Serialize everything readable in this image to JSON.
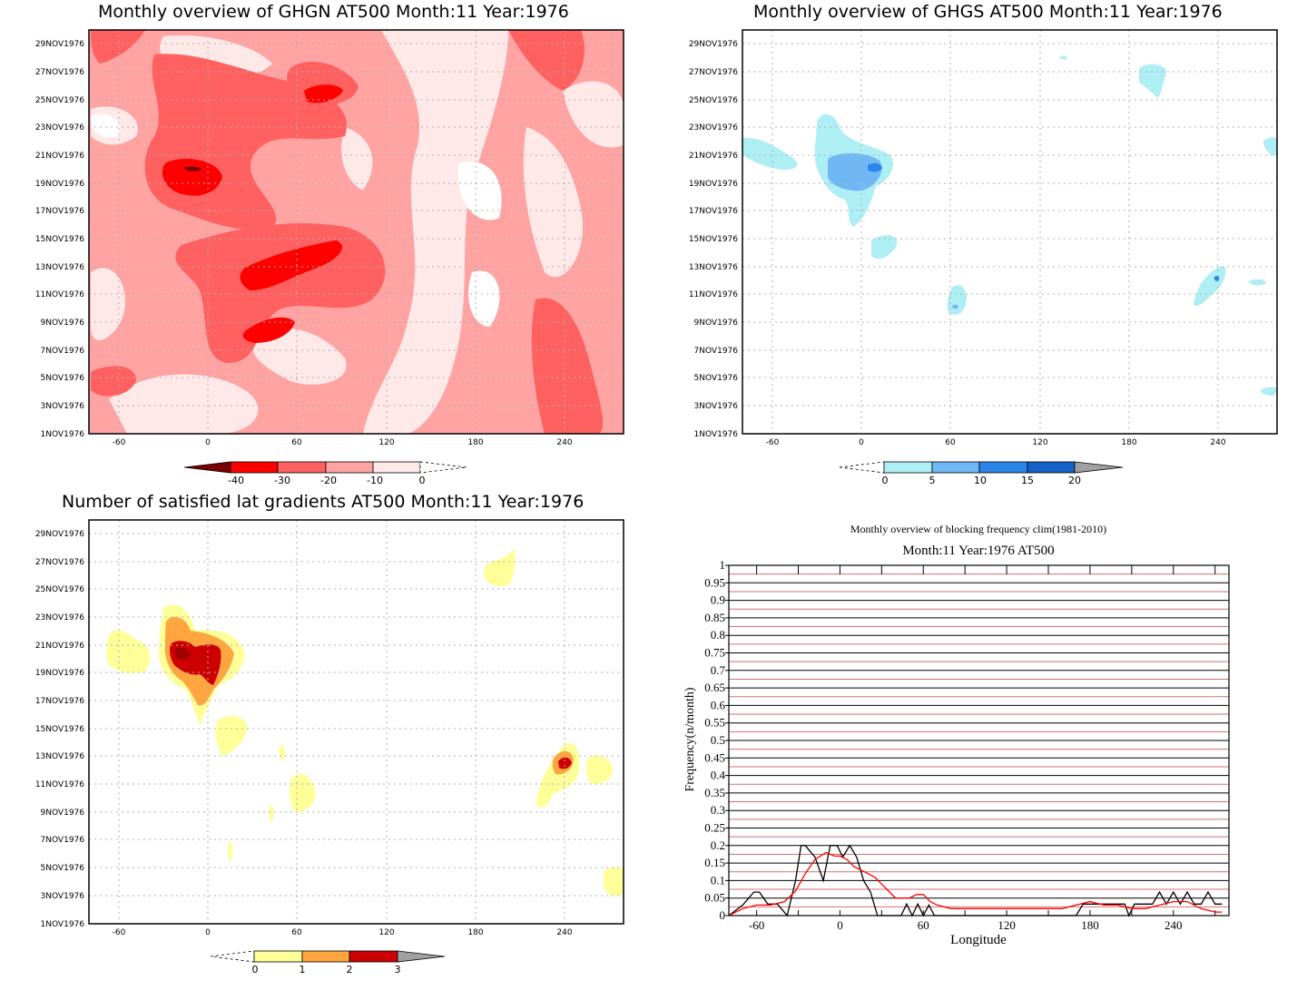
{
  "panels": {
    "ghgn": {
      "title": "Monthly overview of GHGN AT500 Month:11 Year:1976",
      "colorbar": {
        "labels": [
          "-40",
          "-30",
          "-20",
          "-10",
          "0"
        ],
        "colors": [
          "#7a0000",
          "#ff0000",
          "#ff6060",
          "#ffa3a3",
          "#ffe8e8"
        ]
      },
      "colors": {
        "c1": "#ffe8e8",
        "c2": "#ffa3a3",
        "c3": "#ff6060",
        "c4": "#ff0000",
        "c5": "#7a0000"
      }
    },
    "ghgs": {
      "title": "Monthly overview of GHGS AT500 Month:11 Year:1976",
      "colorbar": {
        "labels": [
          "0",
          "5",
          "10",
          "15",
          "20"
        ],
        "colors": [
          "#aeeef5",
          "#6fb8f5",
          "#2b86e8",
          "#1562c9",
          "#a0a0a0"
        ]
      }
    },
    "lat": {
      "title": "Number of satisfied lat gradients AT500 Month:11 Year:1976",
      "colorbar": {
        "labels": [
          "0",
          "1",
          "2",
          "3"
        ],
        "colors": [
          "#ffff99",
          "#ffa640",
          "#cc0000",
          "#a0a0a0"
        ]
      }
    },
    "freq": {
      "title": "Monthly overview of blocking frequency clim(1981-2010)",
      "subtitle": "Month:11 Year:1976  AT500",
      "ylabel": "Frequency(n/month)",
      "xlabel": "Longitude"
    }
  },
  "map_axes": {
    "x_ticks": [
      "-60",
      "0",
      "60",
      "120",
      "180",
      "240"
    ],
    "y_ticks": [
      "1NOV1976",
      "3NOV1976",
      "5NOV1976",
      "7NOV1976",
      "9NOV1976",
      "11NOV1976",
      "13NOV1976",
      "15NOV1976",
      "17NOV1976",
      "19NOV1976",
      "21NOV1976",
      "23NOV1976",
      "25NOV1976",
      "27NOV1976",
      "29NOV1976"
    ]
  },
  "chart_data": [
    {
      "type": "heatmap",
      "title": "Monthly overview of GHGN AT500 Month:11 Year:1976",
      "x_range": [
        -75,
        285
      ],
      "y_range": [
        "1NOV1976",
        "30NOV1976"
      ],
      "levels": [
        -40,
        -30,
        -20,
        -10,
        0
      ]
    },
    {
      "type": "heatmap",
      "title": "Monthly overview of GHGS AT500 Month:11 Year:1976",
      "x_range": [
        -75,
        285
      ],
      "y_range": [
        "1NOV1976",
        "30NOV1976"
      ],
      "levels": [
        0,
        5,
        10,
        15,
        20
      ]
    },
    {
      "type": "heatmap",
      "title": "Number of satisfied lat gradients AT500 Month:11 Year:1976",
      "x_range": [
        -75,
        285
      ],
      "y_range": [
        "1NOV1976",
        "30NOV1976"
      ],
      "levels": [
        0,
        1,
        2,
        3
      ]
    },
    {
      "type": "line",
      "title": "Monthly overview of blocking frequency clim(1981-2010)",
      "subtitle": "Month:11 Year:1976  AT500",
      "xlabel": "Longitude",
      "ylabel": "Frequency(n/month)",
      "xlim": [
        -80,
        280
      ],
      "ylim": [
        0,
        1
      ],
      "x_ticks": [
        -60,
        0,
        60,
        120,
        180,
        240
      ],
      "y_ticks": [
        0,
        0.05,
        0.1,
        0.15,
        0.2,
        0.25,
        0.3,
        0.35,
        0.4,
        0.45,
        0.5,
        0.55,
        0.6,
        0.65,
        0.7,
        0.75,
        0.8,
        0.85,
        0.9,
        0.95,
        1
      ],
      "y_tick_labels": [
        "0",
        "0.05",
        "0.1",
        "0.15",
        "0.2",
        "0.25",
        "0.3",
        "0.35",
        "0.4",
        "0.45",
        "0.5",
        "0.55",
        "0.6",
        "0.65",
        "0.7",
        "0.75",
        "0.8",
        "0.85",
        "0.9",
        "0.95",
        "1"
      ],
      "series": [
        {
          "color": "#000000",
          "x": [
            -80,
            -70,
            -62,
            -58,
            -52,
            -45,
            -38,
            -32,
            -28,
            -25,
            -18,
            -12,
            -7,
            -2,
            2,
            7,
            12,
            17,
            22,
            27,
            32,
            38,
            44,
            48,
            52,
            56,
            60,
            64,
            68,
            74,
            80,
            120,
            170,
            175,
            180,
            185,
            190,
            200,
            205,
            208,
            212,
            220,
            225,
            230,
            235,
            240,
            245,
            250,
            255,
            260,
            265,
            270,
            275
          ],
          "y": [
            0,
            0.03,
            0.067,
            0.067,
            0.033,
            0.033,
            0,
            0.1,
            0.2,
            0.2,
            0.167,
            0.1,
            0.2,
            0.2,
            0.167,
            0.2,
            0.167,
            0.1,
            0.067,
            0,
            0,
            0,
            0,
            0.033,
            0,
            0.033,
            0,
            0.03,
            0,
            0,
            0,
            0,
            0,
            0.033,
            0.033,
            0.033,
            0.033,
            0.033,
            0.033,
            0,
            0.033,
            0.033,
            0.033,
            0.067,
            0.033,
            0.067,
            0.033,
            0.067,
            0.033,
            0.033,
            0.067,
            0.033,
            0.033
          ]
        },
        {
          "color": "#ff0000",
          "x": [
            -80,
            -70,
            -60,
            -50,
            -40,
            -32,
            -25,
            -18,
            -10,
            -4,
            0,
            5,
            10,
            15,
            20,
            25,
            30,
            35,
            40,
            45,
            50,
            55,
            60,
            65,
            70,
            80,
            90,
            100,
            110,
            120,
            130,
            140,
            150,
            160,
            170,
            180,
            190,
            200,
            210,
            220,
            230,
            240,
            250,
            260,
            270,
            275
          ],
          "y": [
            0,
            0.02,
            0.03,
            0.03,
            0.04,
            0.07,
            0.12,
            0.16,
            0.18,
            0.17,
            0.17,
            0.16,
            0.14,
            0.13,
            0.12,
            0.11,
            0.09,
            0.07,
            0.05,
            0.05,
            0.05,
            0.06,
            0.06,
            0.04,
            0.03,
            0.02,
            0.02,
            0.02,
            0.02,
            0.02,
            0.02,
            0.02,
            0.02,
            0.02,
            0.03,
            0.04,
            0.03,
            0.03,
            0.02,
            0.02,
            0.03,
            0.04,
            0.04,
            0.02,
            0.01,
            0.01
          ]
        }
      ]
    }
  ]
}
